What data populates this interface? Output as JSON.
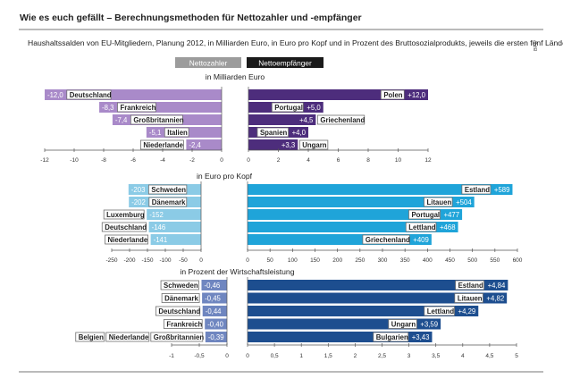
{
  "header": {
    "title": "Wie es euch gefällt – Berechnungsmethoden für Nettozahler und -empfänger",
    "subtitle": "Haushaltssalden von EU-Mitgliedern, Planung 2012, in Milliarden Euro, in Euro pro Kopf und in Prozent des Bruttosozialprodukts, jeweils die ersten fünf Länder",
    "source": "BPB"
  },
  "legend": {
    "payers": "Nettozahler",
    "recipients": "Nettoempfänger"
  },
  "colors": {
    "payers": [
      "#a98ac9",
      "#8bcbe6",
      "#6f86c0"
    ],
    "recipients": [
      "#4d2d7c",
      "#1fa4d9",
      "#1d4e8f"
    ],
    "frame": "#6f6f6f",
    "text": "#222222"
  },
  "chart_data": [
    {
      "type": "bar",
      "title": "in Milliarden Euro",
      "payers": {
        "categories": [
          "Deutschland",
          "Frankreich",
          "Großbritannien",
          "Italien",
          "Niederlande"
        ],
        "values": [
          -12.0,
          -8.3,
          -7.4,
          -5.1,
          -2.4
        ],
        "labels": [
          "-12,0",
          "-8,3",
          "-7,4",
          "-5,1",
          "-2,4"
        ],
        "xlim": [
          -12,
          0
        ],
        "ticks": [
          -12,
          -10,
          -8,
          -6,
          -4,
          -2,
          0
        ],
        "tick_labels": [
          "-12",
          "-10",
          "-8",
          "-6",
          "-4",
          "-2",
          "0"
        ]
      },
      "recipients": {
        "categories": [
          "Polen",
          "Portugal",
          "Griechenland",
          "Spanien",
          "Ungarn"
        ],
        "values": [
          12.0,
          5.0,
          4.5,
          4.0,
          3.3
        ],
        "labels": [
          "+12,0",
          "+5,0",
          "+4,5",
          "+4,0",
          "+3,3"
        ],
        "xlim": [
          0,
          12
        ],
        "ticks": [
          0,
          2,
          4,
          6,
          8,
          10,
          12
        ],
        "tick_labels": [
          "0",
          "2",
          "4",
          "6",
          "8",
          "10",
          "12"
        ]
      }
    },
    {
      "type": "bar",
      "title": "in Euro pro Kopf",
      "payers": {
        "categories": [
          "Schweden",
          "Dänemark",
          "Luxemburg",
          "Deutschland",
          "Niederlande"
        ],
        "values": [
          -203,
          -202,
          -152,
          -146,
          -141
        ],
        "labels": [
          "-203",
          "-202",
          "-152",
          "-146",
          "-141"
        ],
        "xlim": [
          -250,
          0
        ],
        "ticks": [
          -250,
          -200,
          -150,
          -100,
          -50,
          0
        ],
        "tick_labels": [
          "-250",
          "-200",
          "-150",
          "-100",
          "-50",
          "0"
        ]
      },
      "recipients": {
        "categories": [
          "Estland",
          "Litauen",
          "Portugal",
          "Lettland",
          "Griechenland"
        ],
        "values": [
          589,
          504,
          477,
          468,
          409
        ],
        "labels": [
          "+589",
          "+504",
          "+477",
          "+468",
          "+409"
        ],
        "xlim": [
          0,
          600
        ],
        "ticks": [
          0,
          50,
          100,
          150,
          200,
          250,
          300,
          350,
          400,
          450,
          500,
          550,
          600
        ],
        "tick_labels": [
          "0",
          "50",
          "100",
          "150",
          "200",
          "250",
          "300",
          "350",
          "400",
          "450",
          "500",
          "550",
          "600"
        ]
      }
    },
    {
      "type": "bar",
      "title": "in Prozent der Wirtschaftsleistung",
      "payers": {
        "categories": [
          "Schweden",
          "Dänemark",
          "Deutschland",
          "Frankreich",
          "Belgien|Niederlande|Großbritannien"
        ],
        "values": [
          -0.46,
          -0.45,
          -0.44,
          -0.4,
          -0.39
        ],
        "labels": [
          "-0,46",
          "-0,45",
          "-0,44",
          "-0,40",
          "-0,39"
        ],
        "xlim": [
          -1,
          0
        ],
        "ticks": [
          -1,
          -0.5,
          0
        ],
        "tick_labels": [
          "-1",
          "-0,5",
          "0"
        ]
      },
      "recipients": {
        "categories": [
          "Estland",
          "Litauen",
          "Lettland",
          "Ungarn",
          "Bulgarien"
        ],
        "values": [
          4.84,
          4.82,
          4.29,
          3.59,
          3.43
        ],
        "labels": [
          "+4,84",
          "+4,82",
          "+4,29",
          "+3,59",
          "+3,43"
        ],
        "xlim": [
          0,
          5
        ],
        "ticks": [
          0,
          0.5,
          1,
          1.5,
          2,
          2.5,
          3,
          3.5,
          4,
          4.5,
          5
        ],
        "tick_labels": [
          "0",
          "0,5",
          "1",
          "1,5",
          "2",
          "2,5",
          "3",
          "3,5",
          "4",
          "4,5",
          "5"
        ]
      }
    }
  ]
}
